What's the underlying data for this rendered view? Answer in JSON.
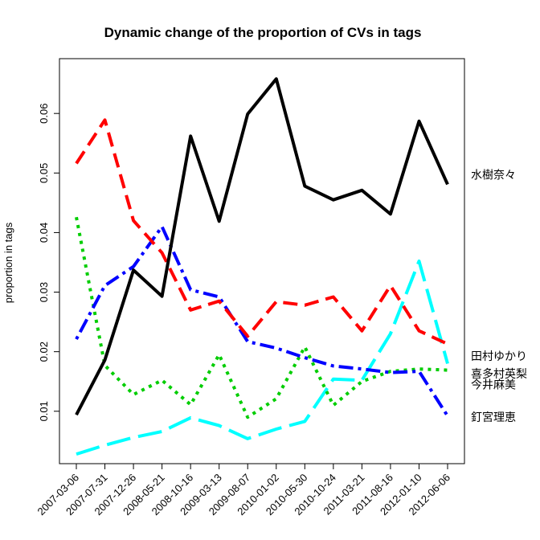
{
  "chart_data": {
    "type": "line",
    "title": "Dynamic change of the proportion of CVs in tags",
    "xlabel": "",
    "ylabel": "proportion in tags",
    "categories": [
      "2007-03-06",
      "2007-07-31",
      "2007-12-26",
      "2008-05-21",
      "2008-10-16",
      "2009-03-13",
      "2009-08-07",
      "2010-01-02",
      "2010-05-30",
      "2010-10-24",
      "2011-03-21",
      "2011-08-16",
      "2012-01-10",
      "2012-06-06"
    ],
    "yticks": [
      0.01,
      0.02,
      0.03,
      0.04,
      0.05,
      0.06
    ],
    "ytick_labels": [
      "0.01",
      "0.02",
      "0.03",
      "0.04",
      "0.05",
      "0.06"
    ],
    "ylim": [
      0.0012,
      0.0692
    ],
    "grid": false,
    "legend": "direct-labels-right",
    "series": [
      {
        "name": "水樹奈々",
        "color": "#000000",
        "dash": "solid",
        "values": [
          0.0094,
          0.0186,
          0.0337,
          0.0293,
          0.0562,
          0.0419,
          0.0599,
          0.0658,
          0.0478,
          0.0455,
          0.0471,
          0.0431,
          0.0587,
          0.0481
        ]
      },
      {
        "name": "田村ゆかり",
        "color": "#ff0000",
        "dash": "dashed",
        "values": [
          0.0516,
          0.0589,
          0.042,
          0.0366,
          0.027,
          0.0285,
          0.0226,
          0.0284,
          0.0278,
          0.0292,
          0.0235,
          0.0311,
          0.0235,
          0.0213
        ]
      },
      {
        "name": "喜多村英梨",
        "color": "#00cd00",
        "dash": "dotted",
        "values": [
          0.0426,
          0.0177,
          0.0128,
          0.0152,
          0.0111,
          0.0195,
          0.009,
          0.0121,
          0.0208,
          0.011,
          0.015,
          0.0167,
          0.0171,
          0.0169
        ]
      },
      {
        "name": "今井麻美",
        "color": "#0000ff",
        "dash": "dotdash",
        "values": [
          0.0221,
          0.0311,
          0.0343,
          0.041,
          0.0304,
          0.0292,
          0.0217,
          0.0206,
          0.019,
          0.0176,
          0.0171,
          0.0165,
          0.0167,
          0.0092
        ]
      },
      {
        "name": "釘宮理恵",
        "color": "#00ffff",
        "dash": "longdash",
        "values": [
          0.0028,
          0.0043,
          0.0056,
          0.0066,
          0.0089,
          0.0076,
          0.0054,
          0.007,
          0.0083,
          0.0154,
          0.0152,
          0.023,
          0.0352,
          0.018
        ]
      }
    ],
    "labels": [
      {
        "text": "水樹奈々",
        "value": 0.0497
      },
      {
        "text": "田村ゆかり",
        "value": 0.0193
      },
      {
        "text": "喜多村英梨",
        "value": 0.0163
      },
      {
        "text": "今井麻美",
        "value": 0.0145
      },
      {
        "text": "釘宮理恵",
        "value": 0.009
      }
    ]
  }
}
